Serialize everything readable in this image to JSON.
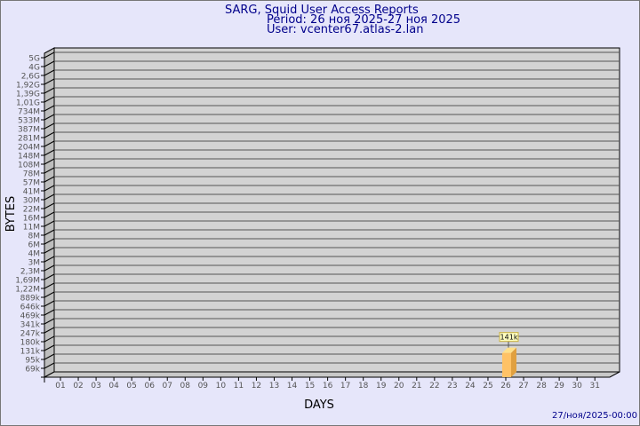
{
  "header": {
    "title": "SARG, Squid User Access Reports",
    "period": "Period: 26 ноя 2025-27 ноя 2025",
    "user": "User: vcenter67.atlas-2.lan"
  },
  "footer": {
    "timestamp": "27/ноя/2025-00:00"
  },
  "colors": {
    "background": "#e6e6fa",
    "plot": "#d3d3d3",
    "bar": "#ffc266",
    "title": "#00008b"
  },
  "chart_data": {
    "type": "bar",
    "xlabel": "DAYS",
    "ylabel": "BYTES",
    "y_scale": "log",
    "y_ticks": [
      "5G",
      "4G",
      "2,6G",
      "1,92G",
      "1,39G",
      "1,01G",
      "734M",
      "533M",
      "387M",
      "281M",
      "204M",
      "148M",
      "108M",
      "78M",
      "57M",
      "41M",
      "30M",
      "22M",
      "16M",
      "11M",
      "8M",
      "6M",
      "4M",
      "3M",
      "2,3M",
      "1,69M",
      "1,22M",
      "889k",
      "646k",
      "469k",
      "341k",
      "247k",
      "180k",
      "131k",
      "95k",
      "69k"
    ],
    "categories": [
      "01",
      "02",
      "03",
      "04",
      "05",
      "06",
      "07",
      "08",
      "09",
      "10",
      "11",
      "12",
      "13",
      "14",
      "15",
      "16",
      "17",
      "18",
      "19",
      "20",
      "21",
      "22",
      "23",
      "24",
      "25",
      "26",
      "27",
      "28",
      "29",
      "30",
      "31"
    ],
    "values": [
      null,
      null,
      null,
      null,
      null,
      null,
      null,
      null,
      null,
      null,
      null,
      null,
      null,
      null,
      null,
      null,
      null,
      null,
      null,
      null,
      null,
      null,
      null,
      null,
      null,
      141000,
      null,
      null,
      null,
      null,
      null
    ],
    "data_labels": {
      "26": "141k"
    },
    "grid": true
  }
}
